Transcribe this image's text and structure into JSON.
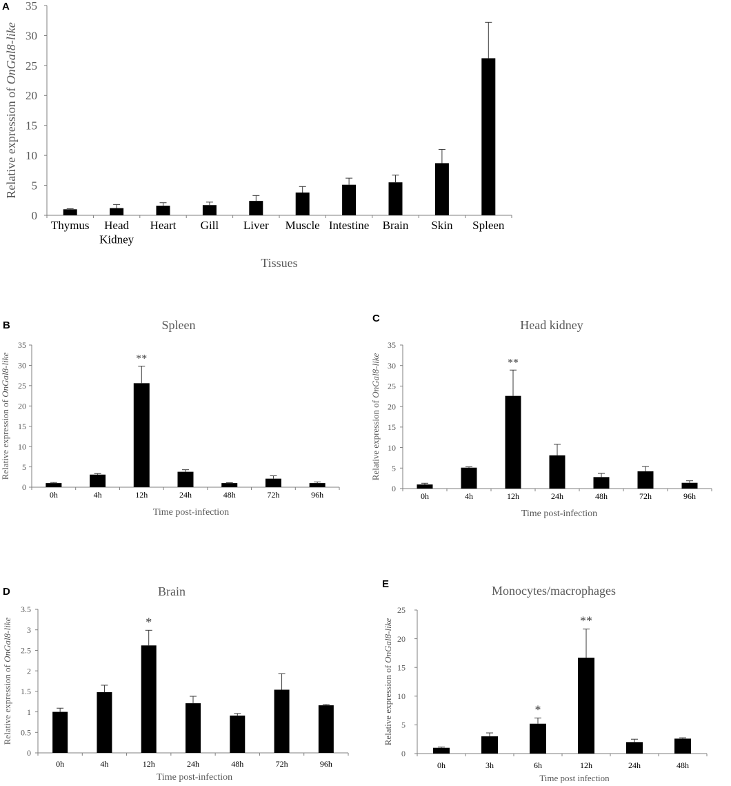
{
  "chart_data": [
    {
      "panel": "A",
      "type": "bar",
      "title": "",
      "xlabel": "Tissues",
      "ylabel_prefix": "Relative expression of ",
      "ylabel_gene": "OnGal8-like",
      "categories": [
        "Thymus",
        "Head\nKidney",
        "Heart",
        "Gill",
        "Liver",
        "Muscle",
        "Intestine",
        "Brain",
        "Skin",
        "Spleen"
      ],
      "values": [
        1.0,
        1.2,
        1.6,
        1.7,
        2.4,
        3.8,
        5.1,
        5.5,
        8.7,
        26.2
      ],
      "errors": [
        0.1,
        0.6,
        0.5,
        0.5,
        0.9,
        1.0,
        1.1,
        1.2,
        2.3,
        6.0
      ],
      "annotations": [
        "",
        "",
        "",
        "",
        "",
        "",
        "",
        "",
        "",
        ""
      ],
      "ylim": [
        0,
        35
      ],
      "ticks": [
        0,
        5,
        10,
        15,
        20,
        25,
        30,
        35
      ],
      "tick_labels": [
        "0",
        "5",
        "10",
        "15",
        "20",
        "25",
        "30",
        "35"
      ]
    },
    {
      "panel": "B",
      "type": "bar",
      "title": "Spleen",
      "xlabel": "Time post-infection",
      "ylabel_prefix": "Relative expression of ",
      "ylabel_gene": "OnGal8-like",
      "categories": [
        "0h",
        "4h",
        "12h",
        "24h",
        "48h",
        "72h",
        "96h"
      ],
      "values": [
        1.0,
        3.1,
        25.6,
        3.8,
        1.0,
        2.1,
        1.0
      ],
      "errors": [
        0.15,
        0.25,
        4.2,
        0.5,
        0.1,
        0.7,
        0.3
      ],
      "annotations": [
        "",
        "",
        "**",
        "",
        "",
        "",
        ""
      ],
      "ylim": [
        0,
        35
      ],
      "ticks": [
        0,
        5,
        10,
        15,
        20,
        25,
        30,
        35
      ],
      "tick_labels": [
        "0",
        "5",
        "10",
        "15",
        "20",
        "25",
        "30",
        "35"
      ]
    },
    {
      "panel": "C",
      "type": "bar",
      "title": "Head kidney",
      "xlabel": "Time post-infection",
      "ylabel_prefix": "Relative expression of ",
      "ylabel_gene": "OnGal8-like",
      "categories": [
        "0h",
        "4h",
        "12h",
        "24h",
        "48h",
        "72h",
        "96h"
      ],
      "values": [
        1.0,
        5.1,
        22.6,
        8.1,
        2.8,
        4.2,
        1.4
      ],
      "errors": [
        0.3,
        0.2,
        6.3,
        2.7,
        0.9,
        1.2,
        0.5
      ],
      "annotations": [
        "",
        "",
        "**",
        "",
        "",
        "",
        ""
      ],
      "ylim": [
        0,
        35
      ],
      "ticks": [
        0,
        5,
        10,
        15,
        20,
        25,
        30,
        35
      ],
      "tick_labels": [
        "0",
        "5",
        "10",
        "15",
        "20",
        "25",
        "30",
        "35"
      ]
    },
    {
      "panel": "D",
      "type": "bar",
      "title": "Brain",
      "xlabel": "Time post-infection",
      "ylabel_prefix": "Relative expression of ",
      "ylabel_gene": "OnGal8-like",
      "categories": [
        "0h",
        "4h",
        "12h",
        "24h",
        "48h",
        "72h",
        "96h"
      ],
      "values": [
        1.0,
        1.48,
        2.62,
        1.21,
        0.91,
        1.54,
        1.16
      ],
      "errors": [
        0.09,
        0.17,
        0.37,
        0.17,
        0.05,
        0.39,
        0.02
      ],
      "annotations": [
        "",
        "",
        "*",
        "",
        "",
        "",
        ""
      ],
      "ylim": [
        0,
        3.5
      ],
      "ticks": [
        0,
        0.5,
        1,
        1.5,
        2,
        2.5,
        3,
        3.5
      ],
      "tick_labels": [
        "0",
        "0.5",
        "1",
        "1.5",
        "2",
        "2.5",
        "3",
        "3.5"
      ]
    },
    {
      "panel": "E",
      "type": "bar",
      "title": "Monocytes/macrophages",
      "xlabel": "Time post infection",
      "ylabel_prefix": "Relative expression of ",
      "ylabel_gene": "OnGal8-like",
      "categories": [
        "0h",
        "3h",
        "6h",
        "12h",
        "24h",
        "48h"
      ],
      "values": [
        1.0,
        3.0,
        5.2,
        16.7,
        2.0,
        2.6
      ],
      "errors": [
        0.15,
        0.6,
        1.0,
        5.0,
        0.5,
        0.15
      ],
      "annotations": [
        "",
        "",
        "*",
        "**",
        "",
        ""
      ],
      "ylim": [
        0,
        25
      ],
      "ticks": [
        0,
        5,
        10,
        15,
        20,
        25
      ],
      "tick_labels": [
        "0",
        "5",
        "10",
        "15",
        "20",
        "25"
      ]
    }
  ]
}
